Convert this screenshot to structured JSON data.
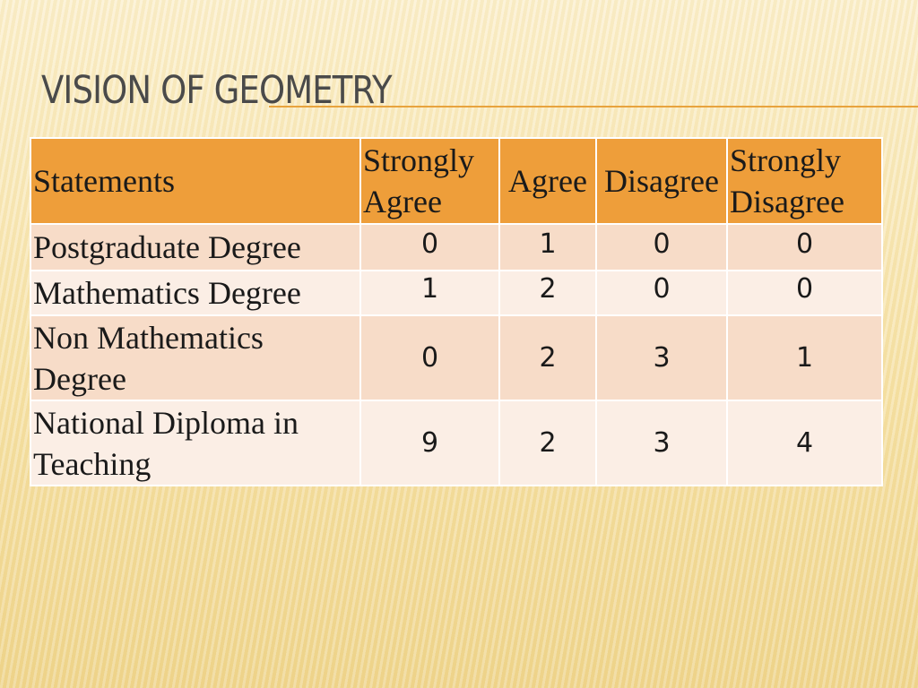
{
  "title": "VISION OF GEOMETRY",
  "table": {
    "headers": [
      "Statements",
      "Strongly Agree",
      "Agree",
      "Disagree",
      "Strongly Disagree"
    ],
    "rows": [
      {
        "statement": "Postgraduate Degree",
        "values": [
          "0",
          "1",
          "0",
          "0"
        ]
      },
      {
        "statement": "Mathematics Degree",
        "values": [
          "1",
          "2",
          "0",
          "0"
        ]
      },
      {
        "statement": "Non Mathematics Degree",
        "values": [
          "0",
          "2",
          "3",
          "1"
        ]
      },
      {
        "statement": "National Diploma in Teaching",
        "values": [
          "9",
          "2",
          "3",
          "4"
        ]
      }
    ]
  },
  "colors": {
    "header_bg": "#ee9e3a",
    "row_odd_bg": "#f7dcc8",
    "row_even_bg": "#fbeee5",
    "title_rule": "#e8a33d"
  }
}
